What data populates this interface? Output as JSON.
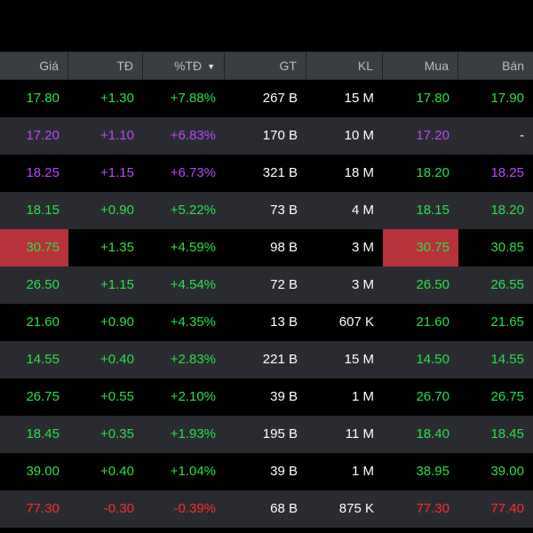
{
  "colors": {
    "green": "#27e04a",
    "purple": "#b847ff",
    "red": "#ff2b2b",
    "white": "#ffffff",
    "highlight": "#b8323a"
  },
  "headers": [
    "Giá",
    "TĐ",
    "%TĐ",
    "GT",
    "KL",
    "Mua",
    "Bán"
  ],
  "sort_icon": "sort-desc-icon",
  "rows": [
    {
      "color": "green",
      "gia": "17.80",
      "td": "+1.30",
      "pct": "+7.88%",
      "gt": "267 B",
      "kl": "15 M",
      "mua": "17.80",
      "ban": "17.90",
      "mua_color": "green",
      "ban_color": "green"
    },
    {
      "color": "purple",
      "gia": "17.20",
      "td": "+1.10",
      "pct": "+6.83%",
      "gt": "170 B",
      "kl": "10 M",
      "mua": "17.20",
      "ban": "-",
      "mua_color": "purple",
      "ban_color": "white"
    },
    {
      "color": "purple",
      "gia": "18.25",
      "td": "+1.15",
      "pct": "+6.73%",
      "gt": "321 B",
      "kl": "18 M",
      "mua": "18.20",
      "ban": "18.25",
      "mua_color": "green",
      "ban_color": "purple"
    },
    {
      "color": "green",
      "gia": "18.15",
      "td": "+0.90",
      "pct": "+5.22%",
      "gt": "73 B",
      "kl": "4 M",
      "mua": "18.15",
      "ban": "18.20",
      "mua_color": "green",
      "ban_color": "green"
    },
    {
      "color": "green",
      "gia": "30.75",
      "td": "+1.35",
      "pct": "+4.59%",
      "gt": "98 B",
      "kl": "3 M",
      "mua": "30.75",
      "ban": "30.85",
      "mua_color": "green",
      "ban_color": "green",
      "highlight": true
    },
    {
      "color": "green",
      "gia": "26.50",
      "td": "+1.15",
      "pct": "+4.54%",
      "gt": "72 B",
      "kl": "3 M",
      "mua": "26.50",
      "ban": "26.55",
      "mua_color": "green",
      "ban_color": "green"
    },
    {
      "color": "green",
      "gia": "21.60",
      "td": "+0.90",
      "pct": "+4.35%",
      "gt": "13 B",
      "kl": "607 K",
      "mua": "21.60",
      "ban": "21.65",
      "mua_color": "green",
      "ban_color": "green"
    },
    {
      "color": "green",
      "gia": "14.55",
      "td": "+0.40",
      "pct": "+2.83%",
      "gt": "221 B",
      "kl": "15 M",
      "mua": "14.50",
      "ban": "14.55",
      "mua_color": "green",
      "ban_color": "green"
    },
    {
      "color": "green",
      "gia": "26.75",
      "td": "+0.55",
      "pct": "+2.10%",
      "gt": "39 B",
      "kl": "1 M",
      "mua": "26.70",
      "ban": "26.75",
      "mua_color": "green",
      "ban_color": "green"
    },
    {
      "color": "green",
      "gia": "18.45",
      "td": "+0.35",
      "pct": "+1.93%",
      "gt": "195 B",
      "kl": "11 M",
      "mua": "18.40",
      "ban": "18.45",
      "mua_color": "green",
      "ban_color": "green"
    },
    {
      "color": "green",
      "gia": "39.00",
      "td": "+0.40",
      "pct": "+1.04%",
      "gt": "39 B",
      "kl": "1 M",
      "mua": "38.95",
      "ban": "39.00",
      "mua_color": "green",
      "ban_color": "green"
    },
    {
      "color": "red",
      "gia": "77.30",
      "td": "-0.30",
      "pct": "-0.39%",
      "gt": "68 B",
      "kl": "875 K",
      "mua": "77.30",
      "ban": "77.40",
      "mua_color": "red",
      "ban_color": "red"
    }
  ]
}
